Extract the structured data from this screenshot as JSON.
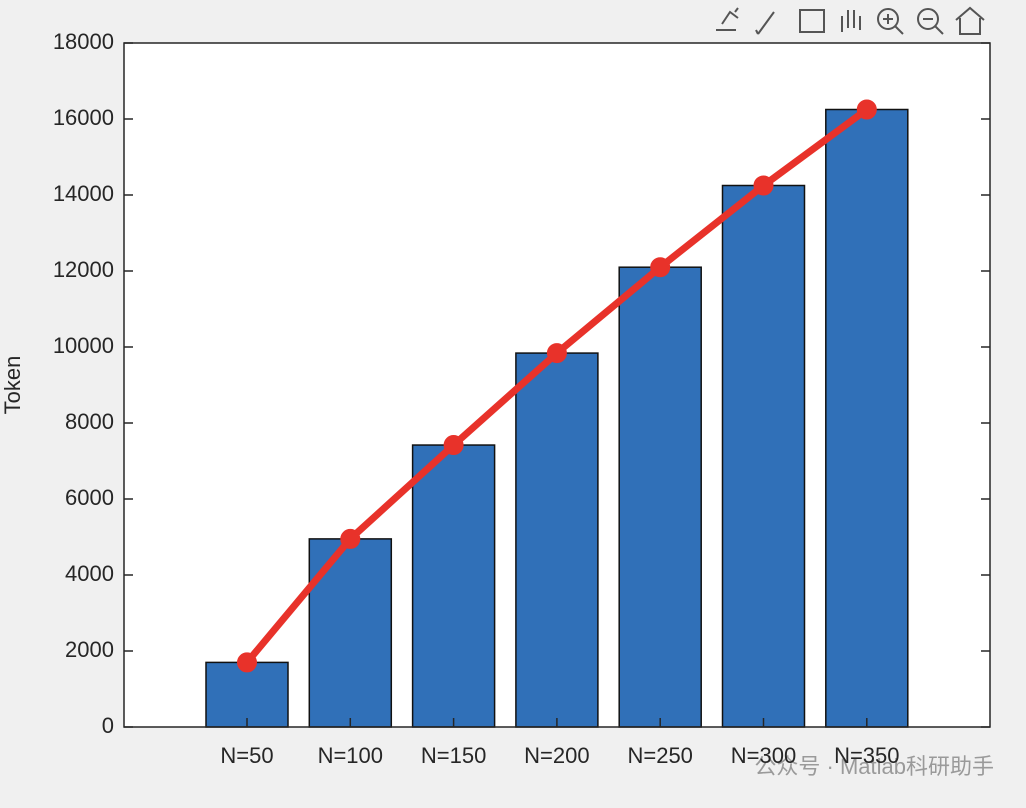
{
  "chart_data": {
    "type": "bar_line",
    "y_label": "Token",
    "categories": [
      "N=50",
      "N=100",
      "N=150",
      "N=200",
      "N=250",
      "N=300",
      "N=350"
    ],
    "values": [
      1700,
      4950,
      7420,
      9840,
      12100,
      14250,
      16250
    ],
    "bar_color": "#3070b8",
    "line_color": "#e8322a",
    "ylim": [
      0,
      18000
    ],
    "yticks": [
      0,
      2000,
      4000,
      6000,
      8000,
      10000,
      12000,
      14000,
      16000,
      18000
    ],
    "grid": false
  },
  "watermark": "公众号 · Matlab科研助手"
}
